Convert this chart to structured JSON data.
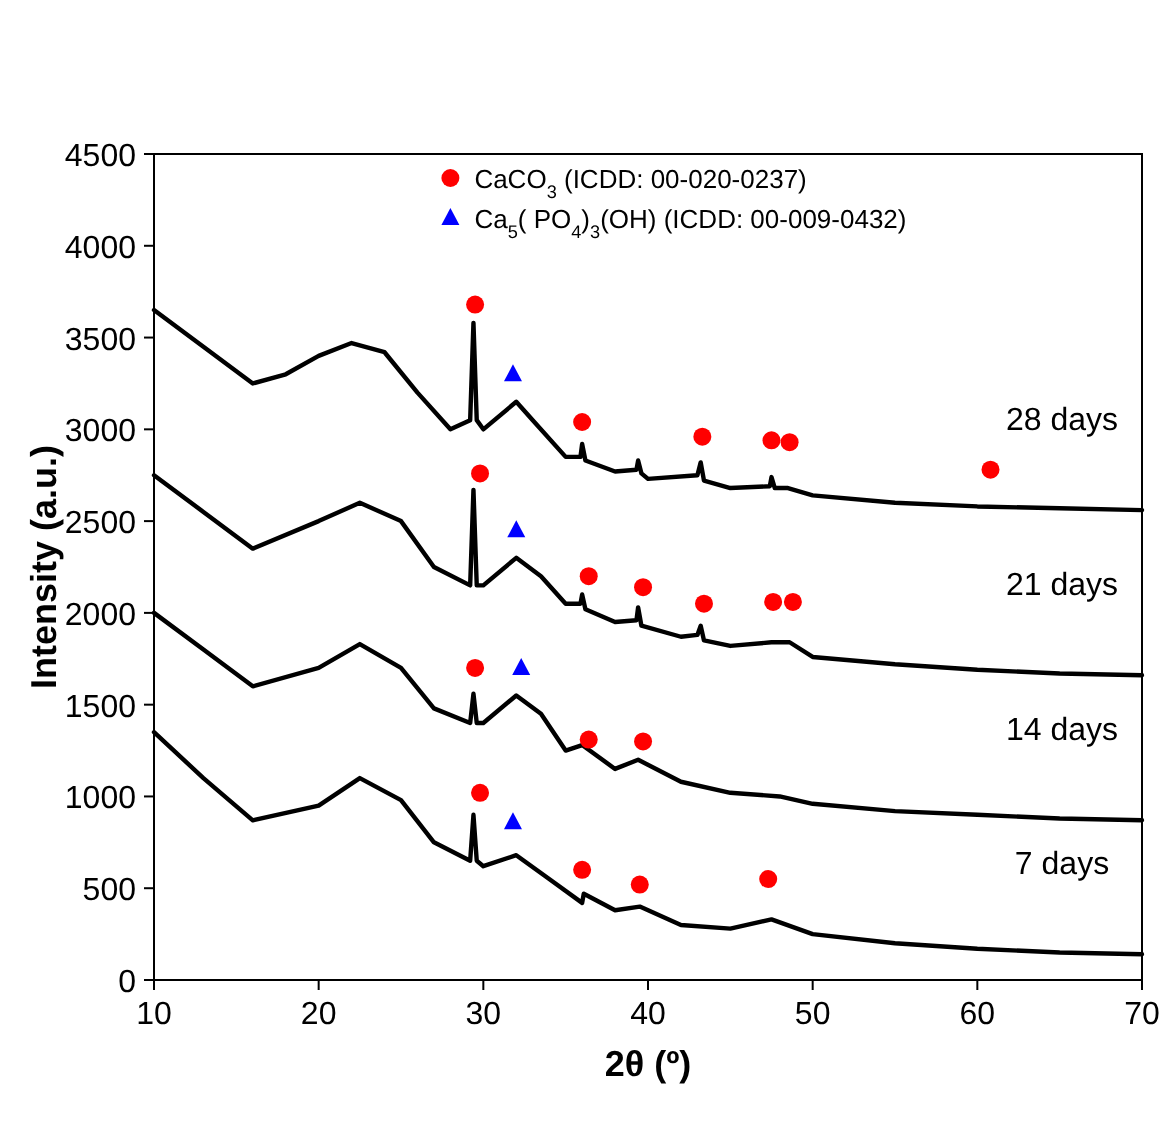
{
  "chart_data": {
    "type": "line",
    "xlabel": "2θ (º)",
    "ylabel": "Intensity (a.u.)",
    "xlim": [
      10,
      70
    ],
    "ylim": [
      0,
      4500
    ],
    "xticks": [
      10,
      20,
      30,
      40,
      50,
      60,
      70
    ],
    "yticks": [
      0,
      500,
      1000,
      1500,
      2000,
      2500,
      3000,
      3500,
      4000,
      4500
    ],
    "legend": "top",
    "series": [
      {
        "color": "#000000",
        "x": [
          10,
          13,
          16,
          18,
          20,
          22,
          24,
          26,
          28,
          29.2,
          29.4,
          29.6,
          30,
          32,
          33,
          35,
          35.9,
          36,
          36.2,
          38,
          39.3,
          39.4,
          39.6,
          40,
          43,
          43.2,
          43.4,
          45,
          47.4,
          47.5,
          47.7,
          48.5,
          50,
          55,
          60,
          65,
          70
        ],
        "values": [
          3650,
          3450,
          3250,
          3300,
          3400,
          3470,
          3420,
          3200,
          3000,
          3050,
          3580,
          3050,
          3000,
          3150,
          3050,
          2850,
          2850,
          2920,
          2830,
          2770,
          2780,
          2830,
          2760,
          2730,
          2750,
          2820,
          2720,
          2680,
          2690,
          2740,
          2680,
          2680,
          2640,
          2600,
          2580,
          2570,
          2560
        ]
      },
      {
        "color": "#000000",
        "x": [
          10,
          13,
          16,
          20,
          22.5,
          25,
          27,
          29.2,
          29.4,
          29.6,
          30,
          32,
          33.5,
          35,
          35.9,
          36,
          36.2,
          38,
          39.3,
          39.4,
          39.6,
          42,
          43,
          43.2,
          43.4,
          45,
          47.5,
          48.6,
          50,
          55,
          60,
          65,
          70
        ],
        "values": [
          2750,
          2550,
          2350,
          2500,
          2600,
          2500,
          2250,
          2150,
          2670,
          2150,
          2150,
          2300,
          2200,
          2050,
          2050,
          2100,
          2020,
          1950,
          1960,
          2030,
          1930,
          1870,
          1880,
          1930,
          1850,
          1820,
          1840,
          1840,
          1760,
          1720,
          1690,
          1670,
          1660
        ]
      },
      {
        "color": "#000000",
        "x": [
          10,
          13,
          16,
          20,
          22.5,
          25,
          27,
          29.2,
          29.4,
          29.6,
          30,
          32,
          33.5,
          35,
          36,
          38,
          39.4,
          42,
          45,
          48,
          50,
          55,
          60,
          65,
          70
        ],
        "values": [
          2000,
          1800,
          1600,
          1700,
          1830,
          1700,
          1480,
          1400,
          1560,
          1400,
          1400,
          1550,
          1450,
          1250,
          1280,
          1150,
          1200,
          1080,
          1020,
          1000,
          960,
          920,
          900,
          880,
          870
        ]
      },
      {
        "color": "#000000",
        "x": [
          10,
          13,
          16,
          20,
          22.5,
          25,
          27,
          29.2,
          29.4,
          29.6,
          30,
          32,
          34,
          36,
          36.1,
          38,
          39.5,
          42,
          45,
          47.5,
          50,
          55,
          60,
          65,
          70
        ],
        "values": [
          1350,
          1100,
          870,
          950,
          1100,
          980,
          750,
          650,
          900,
          650,
          620,
          680,
          550,
          420,
          470,
          380,
          400,
          300,
          280,
          330,
          250,
          200,
          170,
          150,
          140
        ]
      },
      {
        "type": "scatter",
        "name": "CaCO$_{3}$ (ICDD: 00-020-0237)",
        "color": "#ff0000",
        "marker": "circle",
        "x": [
          29.5,
          36,
          43.3,
          47.5,
          48.6,
          60.8,
          29.8,
          36.4,
          39.7,
          43.4,
          47.6,
          48.8,
          29.5,
          36.4,
          39.7,
          29.8,
          36,
          39.5,
          47.3
        ],
        "values": [
          3680,
          3040,
          2960,
          2940,
          2930,
          2780,
          2760,
          2200,
          2140,
          2050,
          2060,
          2060,
          1700,
          1310,
          1300,
          1020,
          600,
          520,
          550
        ]
      },
      {
        "type": "scatter",
        "name": "Ca$_{5}$( PO$_{4}$)$_{3}$(OH) (ICDD: 00-009-0432)",
        "color": "#0000ff",
        "marker": "triangle",
        "x": [
          31.8,
          32,
          32.3,
          31.8
        ],
        "values": [
          3300,
          2450,
          1700,
          860
        ]
      }
    ],
    "annotations": [
      "28 days",
      "21 days",
      "14 days",
      "7 days"
    ]
  }
}
